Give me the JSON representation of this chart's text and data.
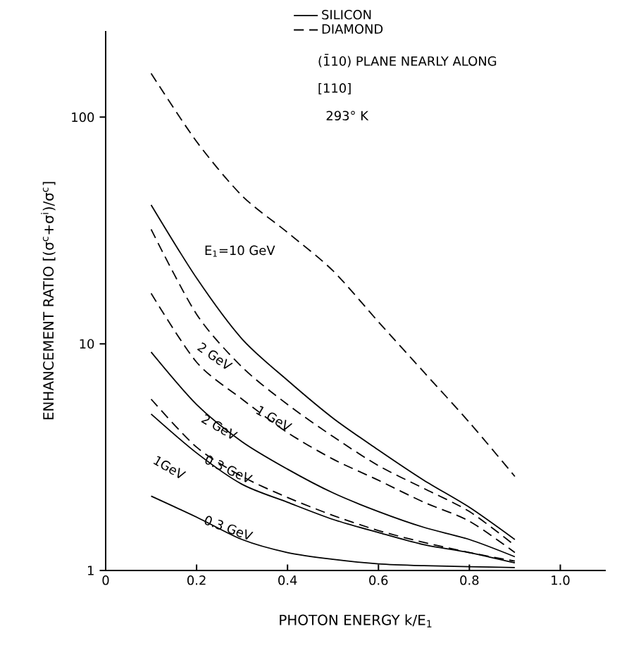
{
  "chart_data": {
    "type": "line",
    "xlabel": "PHOTON ENERGY  k/E$_{1}$",
    "ylabel": "ENHANCEMENT RATIO  [(σ$^{c}$+σ$^{i}$)/σ$^{c}$]",
    "x": [
      0.1,
      0.2,
      0.3,
      0.4,
      0.5,
      0.6,
      0.7,
      0.8,
      0.9
    ],
    "series": [
      {
        "name": "SILICON",
        "color": "#000000",
        "line_style": "solid",
        "values": [
          41,
          19.5,
          10.5,
          6.9,
          4.7,
          3.4,
          2.5,
          1.9,
          1.37
        ]
      },
      {
        "name": "DIAMOND",
        "color": "#000000",
        "line_style": "dashed",
        "values": [
          156,
          78,
          45,
          31,
          21,
          12.5,
          7.5,
          4.5,
          2.6
        ]
      },
      {
        "color": "#000000",
        "line_style": "dashed",
        "values": [
          32,
          13.5,
          7.9,
          5.4,
          3.9,
          2.9,
          2.3,
          1.82,
          1.29
        ]
      },
      {
        "color": "#000000",
        "line_style": "dashed",
        "values": [
          16.7,
          8.3,
          5.7,
          4.06,
          3.1,
          2.5,
          2.0,
          1.65,
          1.2
        ]
      },
      {
        "color": "#000000",
        "line_style": "solid",
        "values": [
          9.2,
          5.4,
          3.7,
          2.8,
          2.2,
          1.82,
          1.55,
          1.37,
          1.15
        ]
      },
      {
        "color": "#000000",
        "line_style": "dashed",
        "values": [
          5.7,
          3.5,
          2.6,
          2.1,
          1.75,
          1.5,
          1.33,
          1.2,
          1.1
        ]
      },
      {
        "color": "#000000",
        "line_style": "solid",
        "values": [
          4.9,
          3.3,
          2.4,
          2.0,
          1.68,
          1.47,
          1.3,
          1.2,
          1.08
        ]
      },
      {
        "color": "#000000",
        "line_style": "solid",
        "values": [
          2.13,
          1.72,
          1.37,
          1.2,
          1.12,
          1.07,
          1.05,
          1.04,
          1.03
        ]
      }
    ],
    "log": "y",
    "xlim": [
      0,
      1.1
    ],
    "ylim": [
      1,
      240
    ],
    "xticks": [
      0,
      0.2,
      0.4,
      0.6,
      0.8,
      {
        "value": 1,
        "label": "1.0"
      }
    ],
    "yticks": [
      1,
      10,
      100
    ],
    "grid": false,
    "legend": "top",
    "marker": "none",
    "annotations": [
      "(1̄10) PLANE NEARLY ALONG",
      "[110]",
      "293° K",
      "E$_{1}$=10 GeV",
      "2 GeV",
      "1 GeV",
      "2 GeV",
      "0.3 GeV",
      "1GeV",
      "0.3 GeV"
    ]
  }
}
